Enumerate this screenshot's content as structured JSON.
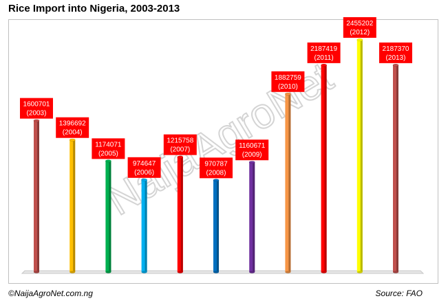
{
  "title": "Rice Import into Nigeria, 2003-2013",
  "copyright": "©NaijaAgroNet.com.ng",
  "source": "Source: FAO",
  "watermark": "NaijaAgroNet",
  "colors": {
    "label_bg": "#ff0000",
    "bar_colors": [
      "#c0504d",
      "#ffc000",
      "#00b050",
      "#00b0f0",
      "#ff0000",
      "#0070c0",
      "#7030a0",
      "#f79646",
      "#ff0000",
      "#ffff00",
      "#c0504d"
    ]
  },
  "chart_data": {
    "type": "bar",
    "title": "Rice Import into Nigeria, 2003-2013",
    "categories": [
      "2003",
      "2004",
      "2005",
      "2006",
      "2007",
      "2008",
      "2009",
      "2010",
      "2011",
      "2012",
      "2013"
    ],
    "values": [
      1600701,
      1396692,
      1174071,
      974647,
      1215758,
      970787,
      1160671,
      1882759,
      2187419,
      2455202,
      2187370
    ],
    "data_labels": [
      {
        "value": "1600701",
        "year": "(2003)"
      },
      {
        "value": "1396692",
        "year": "(2004)"
      },
      {
        "value": "1174071",
        "year": "(2005)"
      },
      {
        "value": "974647",
        "year": "(2006)"
      },
      {
        "value": "1215758",
        "year": "(2007)"
      },
      {
        "value": "970787",
        "year": "(2008)"
      },
      {
        "value": "1160671",
        "year": "(2009)"
      },
      {
        "value": "1882759",
        "year": "(2010)"
      },
      {
        "value": "2187419",
        "year": "(2011)"
      },
      {
        "value": "2455202",
        "year": "(2012)"
      },
      {
        "value": "2187370",
        "year": "(2013)"
      }
    ],
    "xlabel": "",
    "ylabel": "",
    "ylim": [
      0,
      2455202
    ],
    "grid": false,
    "legend": "none"
  }
}
